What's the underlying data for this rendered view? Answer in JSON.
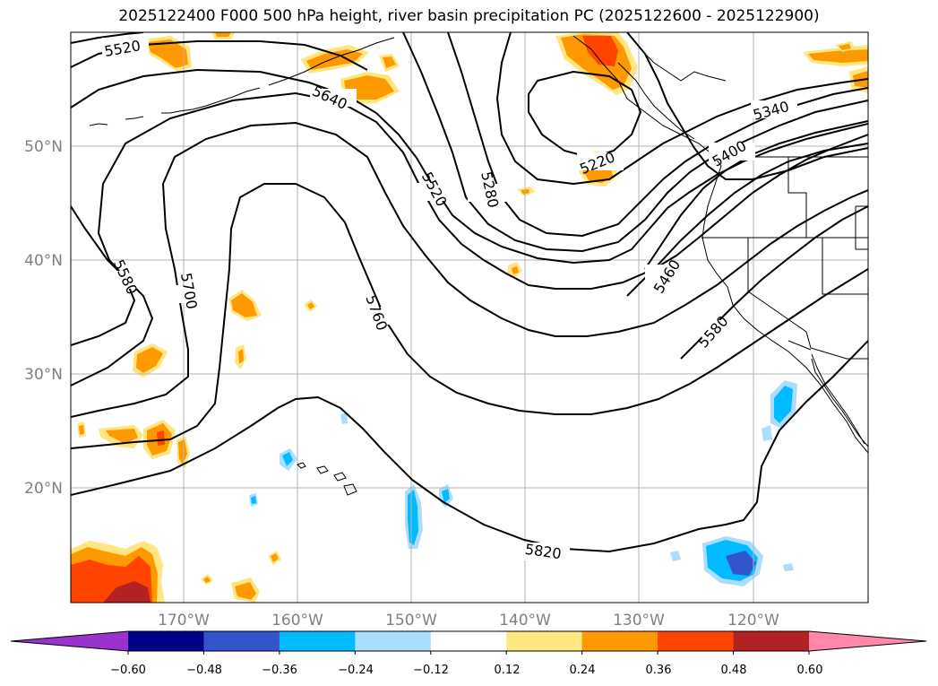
{
  "title": "2025122400 F000 500 hPa height, river basin precipitation PC (2025122600 - 2025122900)",
  "map": {
    "lat_labels": [
      "50°N",
      "40°N",
      "30°N",
      "20°N"
    ],
    "lon_labels": [
      "170°W",
      "160°W",
      "150°W",
      "140°W",
      "130°W",
      "120°W"
    ],
    "contour_labels": [
      "5520",
      "5640",
      "5580",
      "5700",
      "5760",
      "5520",
      "5280",
      "5220",
      "5340",
      "5400",
      "5460",
      "5580",
      "5820"
    ],
    "grid": true
  },
  "colorbar": {
    "tick_labels": [
      "−0.60",
      "−0.48",
      "−0.36",
      "−0.24",
      "−0.12",
      "0.12",
      "0.24",
      "0.36",
      "0.48",
      "0.60"
    ],
    "colors": [
      "#9933cc",
      "#000088",
      "#3355cc",
      "#00bbff",
      "#aaddff",
      "#ffffff",
      "#ffe680",
      "#ff9900",
      "#ff4400",
      "#b22222",
      "#ff88aa"
    ]
  }
}
